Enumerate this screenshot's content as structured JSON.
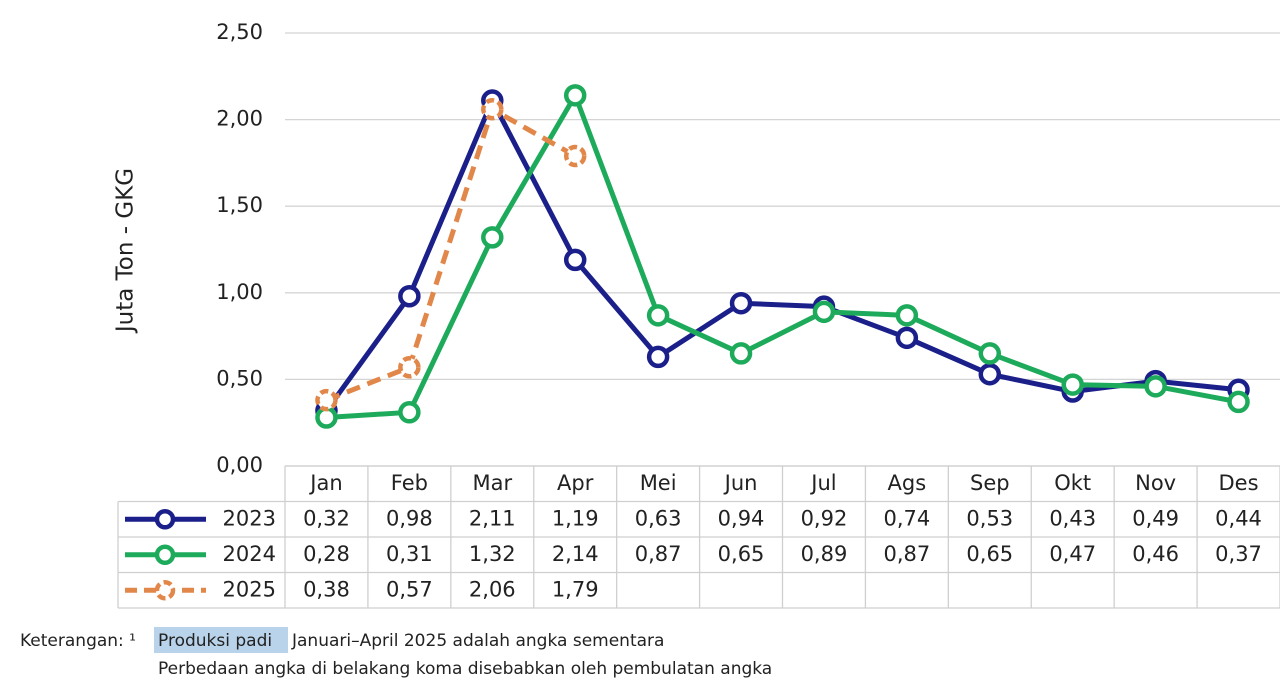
{
  "chart_data": {
    "type": "line",
    "y_label": "Juta Ton - GKG",
    "categories": [
      "Jan",
      "Feb",
      "Mar",
      "Apr",
      "Mei",
      "Jun",
      "Jul",
      "Ags",
      "Sep",
      "Okt",
      "Nov",
      "Des"
    ],
    "series": [
      {
        "name": "2023",
        "color": "#1b1f8a",
        "dashed": false,
        "values": [
          0.32,
          0.98,
          2.11,
          1.19,
          0.63,
          0.94,
          0.92,
          0.74,
          0.53,
          0.43,
          0.49,
          0.44
        ],
        "value_labels": [
          "0,32",
          "0,98",
          "2,11",
          "1,19",
          "0,63",
          "0,94",
          "0,92",
          "0,74",
          "0,53",
          "0,43",
          "0,49",
          "0,44"
        ]
      },
      {
        "name": "2024",
        "color": "#1dab5b",
        "dashed": false,
        "values": [
          0.28,
          0.31,
          1.32,
          2.14,
          0.87,
          0.65,
          0.89,
          0.87,
          0.65,
          0.47,
          0.46,
          0.37
        ],
        "value_labels": [
          "0,28",
          "0,31",
          "1,32",
          "2,14",
          "0,87",
          "0,65",
          "0,89",
          "0,87",
          "0,65",
          "0,47",
          "0,46",
          "0,37"
        ]
      },
      {
        "name": "2025",
        "color": "#e2874a",
        "dashed": true,
        "values": [
          0.38,
          0.57,
          2.06,
          1.79,
          null,
          null,
          null,
          null,
          null,
          null,
          null,
          null
        ],
        "value_labels": [
          "0,38",
          "0,57",
          "2,06",
          "1,79",
          null,
          null,
          null,
          null,
          null,
          null,
          null,
          null
        ]
      }
    ],
    "ylim": [
      0,
      2.5
    ],
    "yticks": [
      {
        "value": 0,
        "label": "0,00"
      },
      {
        "value": 0.5,
        "label": "0,50"
      },
      {
        "value": 1,
        "label": "1,00"
      },
      {
        "value": 1.5,
        "label": "1,50"
      },
      {
        "value": 2,
        "label": "2,00"
      },
      {
        "value": 2.5,
        "label": "2,50"
      }
    ],
    "grid": true
  },
  "notes": {
    "prefix": "Keterangan: ¹",
    "highlight": "Produksi padi",
    "line1": "Januari–April 2025 adalah angka sementara",
    "line2": "Perbedaan angka di belakang koma disebabkan oleh pembulatan angka"
  }
}
